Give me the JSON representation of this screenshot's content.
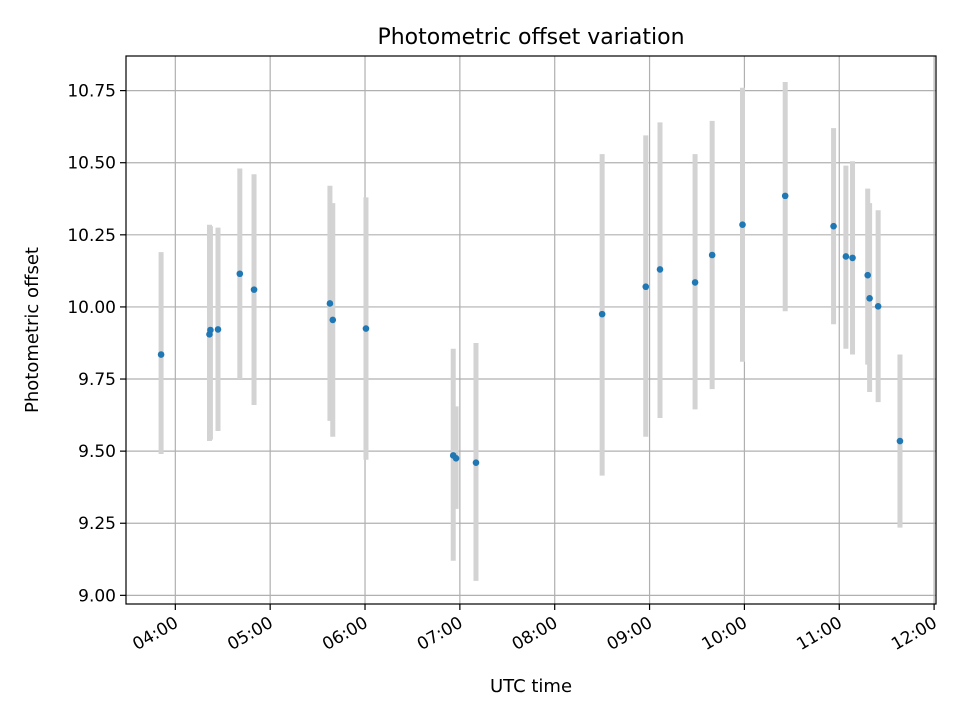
{
  "chart_data": {
    "type": "scatter",
    "title": "Photometric offset variation",
    "xlabel": "UTC time",
    "ylabel": "Photometric offset",
    "x_unit": "UTC hours",
    "x_ticks": [
      {
        "value": 4,
        "label": "04:00"
      },
      {
        "value": 5,
        "label": "05:00"
      },
      {
        "value": 6,
        "label": "06:00"
      },
      {
        "value": 7,
        "label": "07:00"
      },
      {
        "value": 8,
        "label": "08:00"
      },
      {
        "value": 9,
        "label": "09:00"
      },
      {
        "value": 10,
        "label": "10:00"
      },
      {
        "value": 11,
        "label": "11:00"
      },
      {
        "value": 12,
        "label": "12:00"
      }
    ],
    "y_ticks": [
      {
        "value": 9.0,
        "label": "9.00"
      },
      {
        "value": 9.25,
        "label": "9.25"
      },
      {
        "value": 9.5,
        "label": "9.50"
      },
      {
        "value": 9.75,
        "label": "9.75"
      },
      {
        "value": 10.0,
        "label": "10.00"
      },
      {
        "value": 10.25,
        "label": "10.25"
      },
      {
        "value": 10.5,
        "label": "10.50"
      },
      {
        "value": 10.75,
        "label": "10.75"
      }
    ],
    "xlim": [
      3.48,
      12.02
    ],
    "ylim": [
      8.97,
      10.87
    ],
    "grid": true,
    "marker_color": "#1f77b4",
    "errorbar_color": "#d3d3d3",
    "points": [
      {
        "x": 3.85,
        "y": 9.835,
        "lo": 9.49,
        "hi": 10.19
      },
      {
        "x": 4.36,
        "y": 9.905,
        "lo": 9.535,
        "hi": 10.285
      },
      {
        "x": 4.37,
        "y": 9.92,
        "lo": 9.54,
        "hi": 10.28
      },
      {
        "x": 4.45,
        "y": 9.922,
        "lo": 9.57,
        "hi": 10.275
      },
      {
        "x": 4.68,
        "y": 10.115,
        "lo": 9.75,
        "hi": 10.48
      },
      {
        "x": 4.83,
        "y": 10.06,
        "lo": 9.66,
        "hi": 10.46
      },
      {
        "x": 5.63,
        "y": 10.012,
        "lo": 9.605,
        "hi": 10.42
      },
      {
        "x": 5.66,
        "y": 9.955,
        "lo": 9.55,
        "hi": 10.36
      },
      {
        "x": 6.01,
        "y": 9.925,
        "lo": 9.47,
        "hi": 10.38
      },
      {
        "x": 6.93,
        "y": 9.485,
        "lo": 9.12,
        "hi": 9.855
      },
      {
        "x": 6.96,
        "y": 9.475,
        "lo": 9.3,
        "hi": 9.655
      },
      {
        "x": 7.17,
        "y": 9.46,
        "lo": 9.05,
        "hi": 9.875
      },
      {
        "x": 8.5,
        "y": 9.975,
        "lo": 9.415,
        "hi": 10.53
      },
      {
        "x": 8.96,
        "y": 10.07,
        "lo": 9.55,
        "hi": 10.595
      },
      {
        "x": 9.11,
        "y": 10.13,
        "lo": 9.615,
        "hi": 10.64
      },
      {
        "x": 9.48,
        "y": 10.085,
        "lo": 9.645,
        "hi": 10.53
      },
      {
        "x": 9.66,
        "y": 10.18,
        "lo": 9.715,
        "hi": 10.645
      },
      {
        "x": 9.98,
        "y": 10.285,
        "lo": 9.81,
        "hi": 10.76
      },
      {
        "x": 10.43,
        "y": 10.385,
        "lo": 9.985,
        "hi": 10.78
      },
      {
        "x": 10.94,
        "y": 10.28,
        "lo": 9.94,
        "hi": 10.62
      },
      {
        "x": 11.07,
        "y": 10.175,
        "lo": 9.855,
        "hi": 10.49
      },
      {
        "x": 11.14,
        "y": 10.17,
        "lo": 9.835,
        "hi": 10.505
      },
      {
        "x": 11.3,
        "y": 10.11,
        "lo": 9.8,
        "hi": 10.41
      },
      {
        "x": 11.32,
        "y": 10.03,
        "lo": 9.705,
        "hi": 10.36
      },
      {
        "x": 11.41,
        "y": 10.002,
        "lo": 9.67,
        "hi": 10.335
      },
      {
        "x": 11.64,
        "y": 9.535,
        "lo": 9.235,
        "hi": 9.835
      }
    ]
  }
}
